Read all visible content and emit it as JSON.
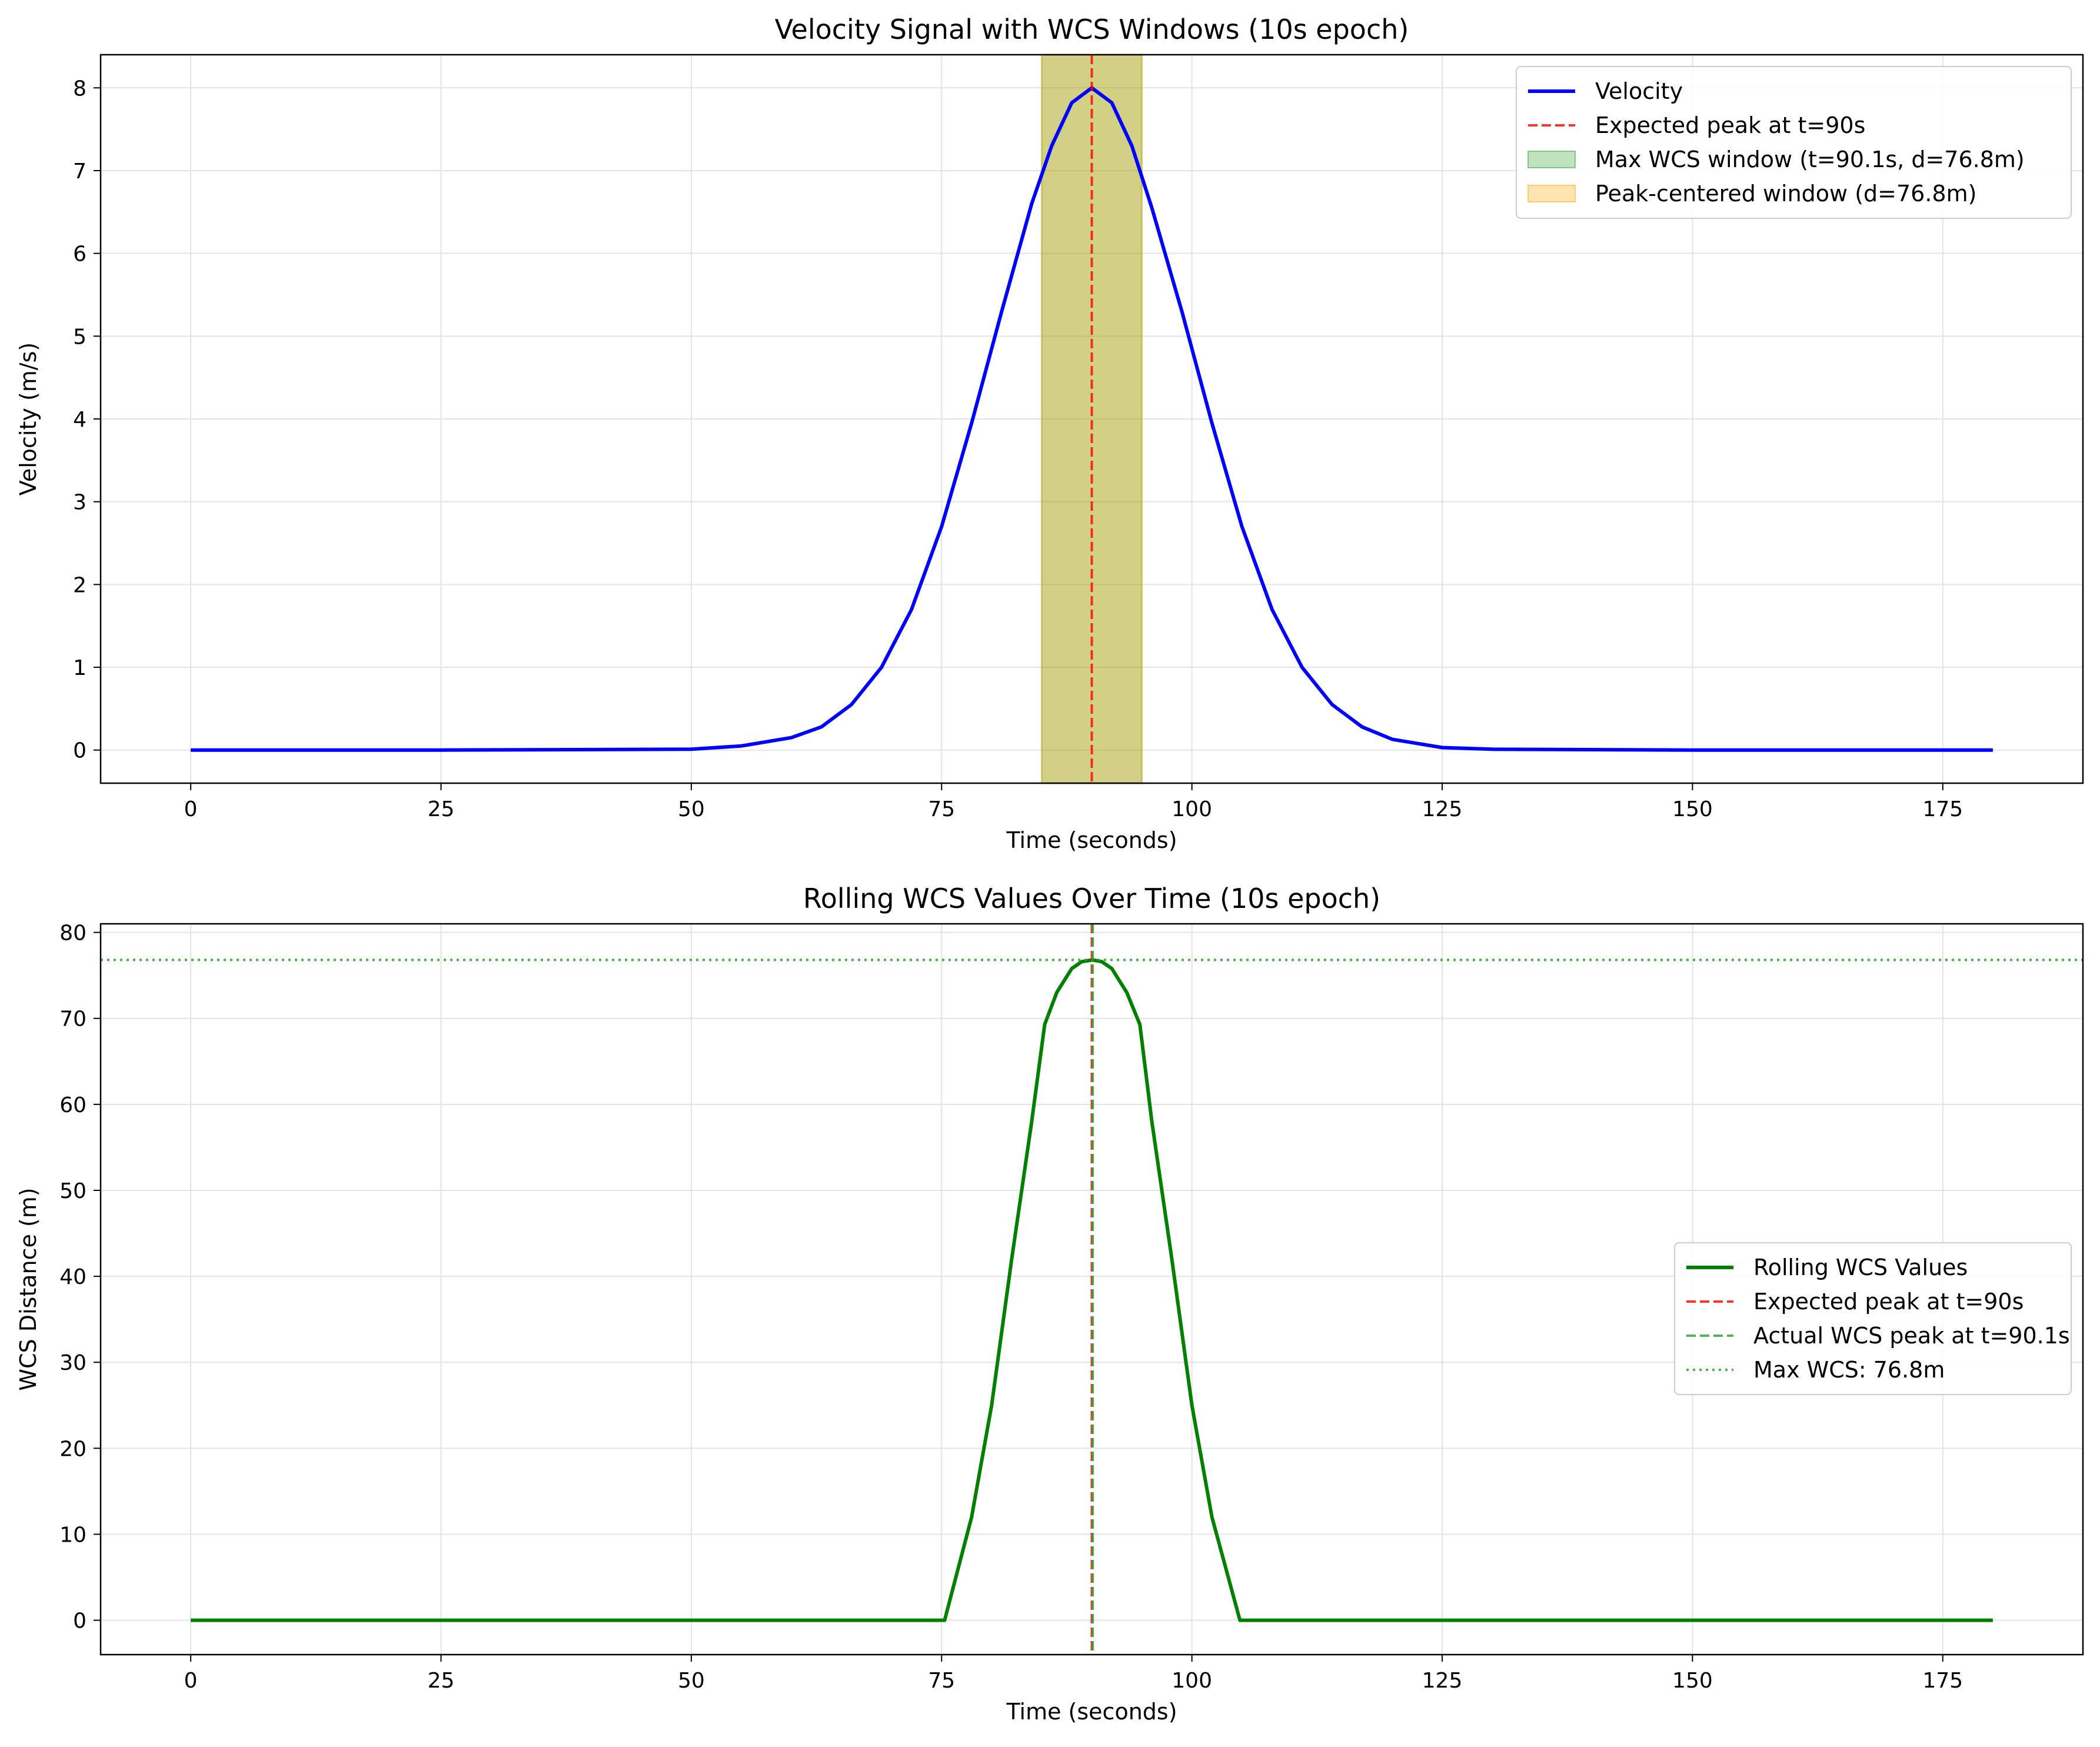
{
  "chart_data": [
    {
      "type": "line",
      "title": "Velocity Signal with WCS Windows (10s epoch)",
      "xlabel": "Time (seconds)",
      "ylabel": "Velocity (m/s)",
      "xlim": [
        -9,
        189
      ],
      "ylim": [
        -0.4,
        8.4
      ],
      "xticks": [
        0,
        25,
        50,
        75,
        100,
        125,
        150,
        175
      ],
      "yticks": [
        0,
        1,
        2,
        3,
        4,
        5,
        6,
        7,
        8
      ],
      "grid": true,
      "legend_position": "upper right",
      "series": [
        {
          "name": "Velocity",
          "color": "#0000ff",
          "style": "solid",
          "x": [
            0,
            25,
            50,
            55,
            60,
            63,
            66,
            69,
            72,
            75,
            78,
            81,
            84,
            86,
            88,
            90,
            92,
            94,
            96,
            99,
            102,
            105,
            108,
            111,
            114,
            117,
            120,
            125,
            130,
            150,
            180
          ],
          "y": [
            0,
            0,
            0.01,
            0.05,
            0.15,
            0.28,
            0.55,
            1.0,
            1.7,
            2.7,
            3.95,
            5.3,
            6.6,
            7.3,
            7.82,
            8.0,
            7.82,
            7.3,
            6.55,
            5.3,
            3.95,
            2.7,
            1.7,
            1.0,
            0.55,
            0.28,
            0.13,
            0.03,
            0.01,
            0,
            0
          ]
        }
      ],
      "vlines": [
        {
          "name": "Expected peak at t=90s",
          "x": 90,
          "color": "#ff0000",
          "style": "dashed"
        }
      ],
      "spans": [
        {
          "name": "Max WCS window (t=90.1s, d=76.8m)",
          "x0": 85,
          "x1": 95,
          "color": "#2ca02c"
        },
        {
          "name": "Peak-centered window (d=76.8m)",
          "x0": 85,
          "x1": 95,
          "color": "#ffa500"
        }
      ]
    },
    {
      "type": "line",
      "title": "Rolling WCS Values Over Time (10s epoch)",
      "xlabel": "Time (seconds)",
      "ylabel": "WCS Distance (m)",
      "xlim": [
        -9,
        189
      ],
      "ylim": [
        -4,
        81
      ],
      "xticks": [
        0,
        25,
        50,
        75,
        100,
        125,
        150,
        175
      ],
      "yticks": [
        0,
        10,
        20,
        30,
        40,
        50,
        60,
        70,
        80
      ],
      "grid": true,
      "legend_position": "center right",
      "series": [
        {
          "name": "Rolling WCS Values",
          "color": "#008000",
          "style": "solid",
          "x": [
            0,
            75.3,
            78,
            80,
            82,
            84,
            85.3,
            86.5,
            88,
            89,
            90.1,
            91,
            92,
            93.5,
            94.8,
            96,
            98,
            100,
            102,
            104.8,
            180
          ],
          "y": [
            0,
            0,
            12,
            25,
            42,
            58,
            69.3,
            73,
            75.8,
            76.6,
            76.8,
            76.6,
            75.8,
            73,
            69.3,
            58,
            42,
            25,
            12,
            0,
            0
          ]
        }
      ],
      "vlines": [
        {
          "name": "Expected peak at t=90s",
          "x": 90,
          "color": "#ff0000",
          "style": "dashed"
        },
        {
          "name": "Actual WCS peak at t=90.1s",
          "x": 90.1,
          "color": "#2ca02c",
          "style": "dashed"
        }
      ],
      "hlines": [
        {
          "name": "Max WCS: 76.8m",
          "y": 76.8,
          "color": "#2ca02c",
          "style": "dotted"
        }
      ]
    }
  ]
}
